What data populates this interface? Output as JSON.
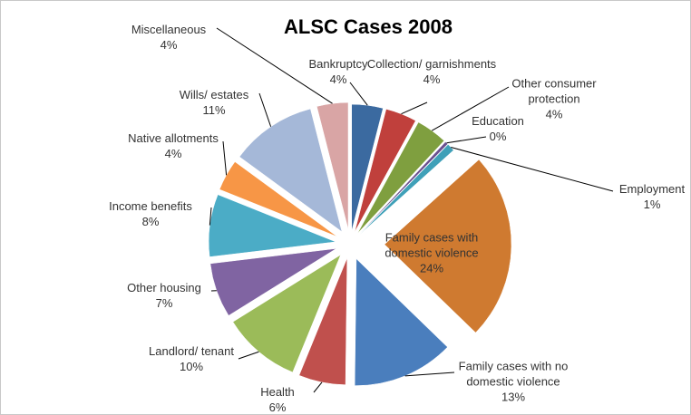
{
  "chart_data": {
    "type": "pie",
    "title": "ALSC Cases 2008",
    "categories": [
      "Bankruptcy",
      "Collection/ garnishments",
      "Other consumer protection",
      "Education",
      "Employment",
      "Family cases with domestic violence",
      "Family cases with no domestic violence",
      "Health",
      "Landlord/ tenant",
      "Other housing",
      "Income benefits",
      "Native allotments",
      "Wills/ estates",
      "Miscellaneous"
    ],
    "values": [
      4,
      4,
      4,
      0.4,
      1,
      24,
      13,
      6,
      10,
      7,
      8,
      4,
      11,
      4
    ],
    "value_labels": [
      "4%",
      "4%",
      "4%",
      "0%",
      "1%",
      "24%",
      "13%",
      "6%",
      "10%",
      "7%",
      "8%",
      "4%",
      "11%",
      "4%"
    ],
    "colors": [
      "#3b6aa0",
      "#c0403c",
      "#7f9f3f",
      "#6a4f8f",
      "#3fa0b8",
      "#cf7a30",
      "#4a7ebd",
      "#c0504d",
      "#9bbb59",
      "#8064a2",
      "#4bacc6",
      "#f79646",
      "#a5b8d8",
      "#d9a5a5"
    ]
  }
}
